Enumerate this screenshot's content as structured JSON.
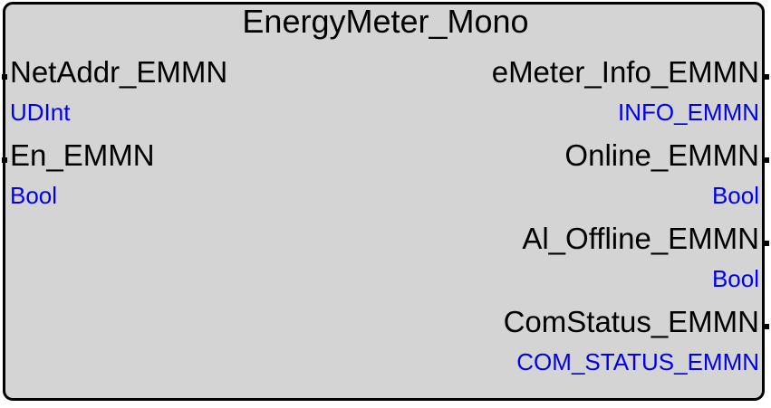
{
  "block": {
    "title": "EnergyMeter_Mono",
    "inputs": [
      {
        "name": "NetAddr_EMMN",
        "type": "UDInt"
      },
      {
        "name": "En_EMMN",
        "type": "Bool"
      }
    ],
    "outputs": [
      {
        "name": "eMeter_Info_EMMN",
        "type": "INFO_EMMN"
      },
      {
        "name": "Online_EMMN",
        "type": "Bool"
      },
      {
        "name": "Al_Offline_EMMN",
        "type": "Bool"
      },
      {
        "name": "ComStatus_EMMN",
        "type": "COM_STATUS_EMMN"
      }
    ]
  },
  "colors": {
    "block_fill": "#d4d4d4",
    "border": "#000000",
    "name_text": "#000000",
    "type_text": "#0000ee"
  }
}
